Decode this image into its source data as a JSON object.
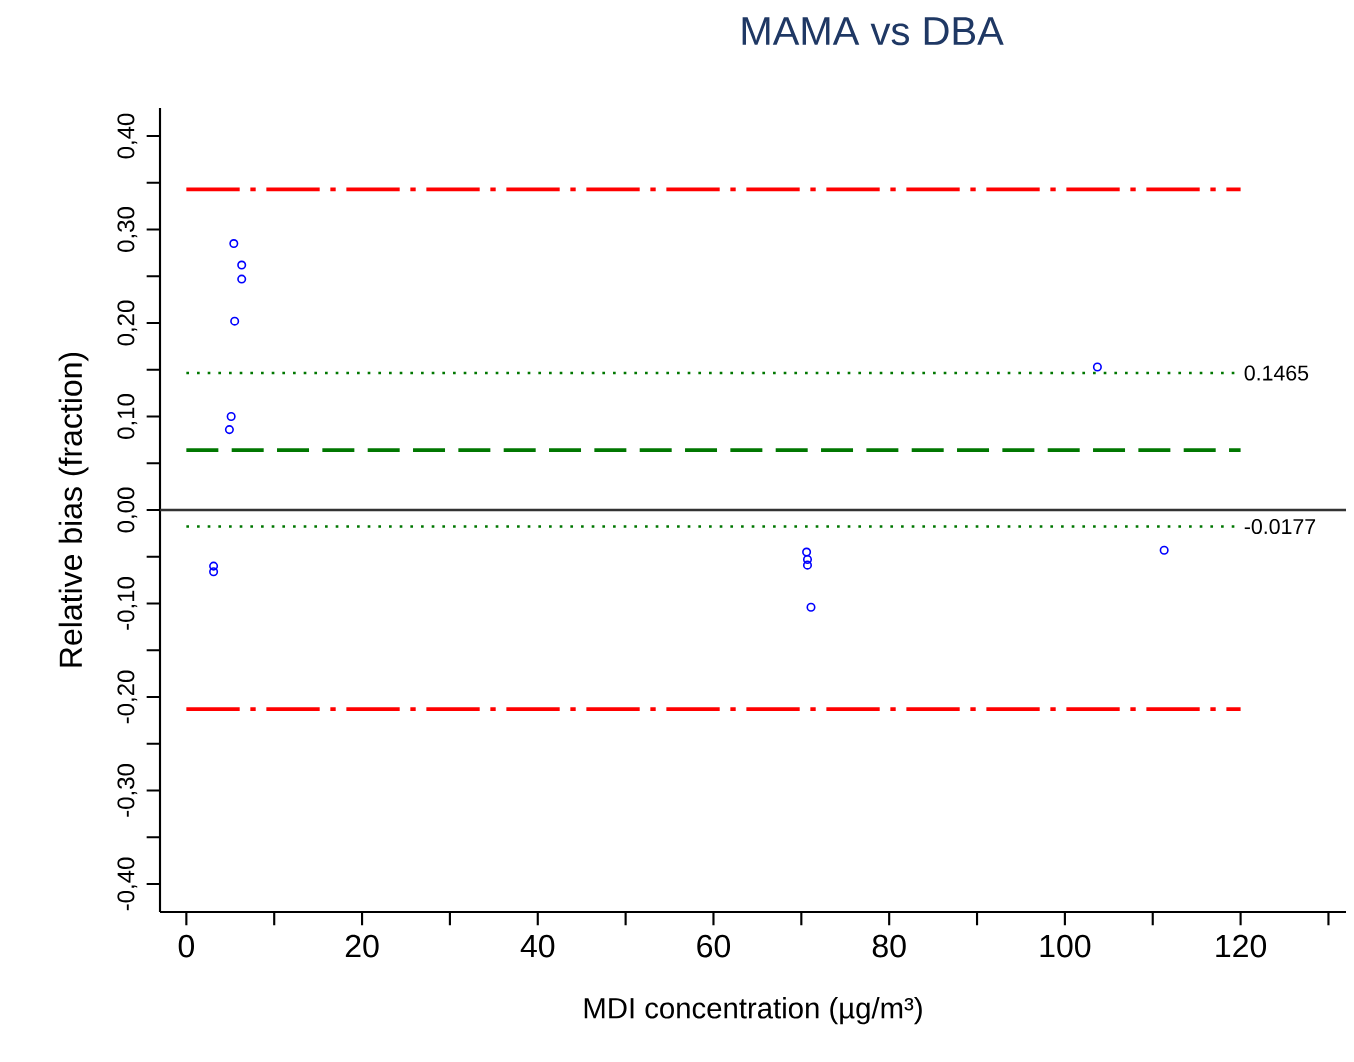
{
  "chart_data": {
    "type": "scatter",
    "title": "MAMA vs DBA",
    "xlabel": "MDI concentration (µg/m³)",
    "ylabel": "Relative bias (fraction)",
    "series": [
      {
        "color": "#0000ff",
        "x": [
          5.4,
          6.3,
          6.3,
          5.5,
          5.1,
          4.9,
          3.1,
          3.1,
          103.7,
          70.6,
          70.7,
          70.7,
          71.1,
          111.3
        ],
        "values": [
          0.285,
          0.262,
          0.247,
          0.202,
          0.1,
          0.086,
          -0.06,
          -0.066,
          0.153,
          -0.045,
          -0.053,
          -0.059,
          -0.104,
          -0.043
        ]
      }
    ],
    "marker": "circle",
    "xlim": [
      -3,
      132
    ],
    "ylim": [
      -0.43,
      0.43
    ],
    "xticks": [
      0,
      {
        "value": 10,
        "label": null
      },
      20,
      {
        "value": 30,
        "label": null
      },
      40,
      {
        "value": 50,
        "label": null
      },
      60,
      {
        "value": 70,
        "label": null
      },
      80,
      {
        "value": 90,
        "label": null
      },
      100,
      {
        "value": 110,
        "label": null
      },
      120,
      {
        "value": 130,
        "label": null
      }
    ],
    "yticks": [
      {
        "value": -0.4,
        "label": "-0,40"
      },
      {
        "value": -0.35,
        "label": null
      },
      {
        "value": -0.3,
        "label": "-0,30"
      },
      {
        "value": -0.25,
        "label": null
      },
      {
        "value": -0.2,
        "label": "-0,20"
      },
      {
        "value": -0.15,
        "label": null
      },
      {
        "value": -0.1,
        "label": "-0,10"
      },
      {
        "value": -0.05,
        "label": null
      },
      {
        "value": 0,
        "label": "0,00"
      },
      {
        "value": 0.05,
        "label": null
      },
      {
        "value": 0.1,
        "label": "0,10"
      },
      {
        "value": 0.15,
        "label": null
      },
      {
        "value": 0.2,
        "label": "0,20"
      },
      {
        "value": 0.25,
        "label": null
      },
      {
        "value": 0.3,
        "label": "0,30"
      },
      {
        "value": 0.35,
        "label": null
      },
      {
        "value": 0.4,
        "label": "0,40"
      }
    ],
    "ref_lines": [
      {
        "axis": "y",
        "value": 0.343,
        "color": "#ff0000",
        "line_style": "dashdot"
      },
      {
        "axis": "y",
        "value": 0.1465,
        "label": "0.1465",
        "color": "#007700",
        "line_style": "dotted"
      },
      {
        "axis": "y",
        "value": 0.064,
        "color": "#007700",
        "line_style": "dashed"
      },
      {
        "axis": "y",
        "value": 0,
        "color": "#333333",
        "line_style": "solid"
      },
      {
        "axis": "y",
        "value": -0.0177,
        "label": "-0.0177",
        "color": "#007700",
        "line_style": "dotted"
      },
      {
        "axis": "y",
        "value": -0.213,
        "color": "#ff0000",
        "line_style": "dashdot"
      }
    ]
  }
}
